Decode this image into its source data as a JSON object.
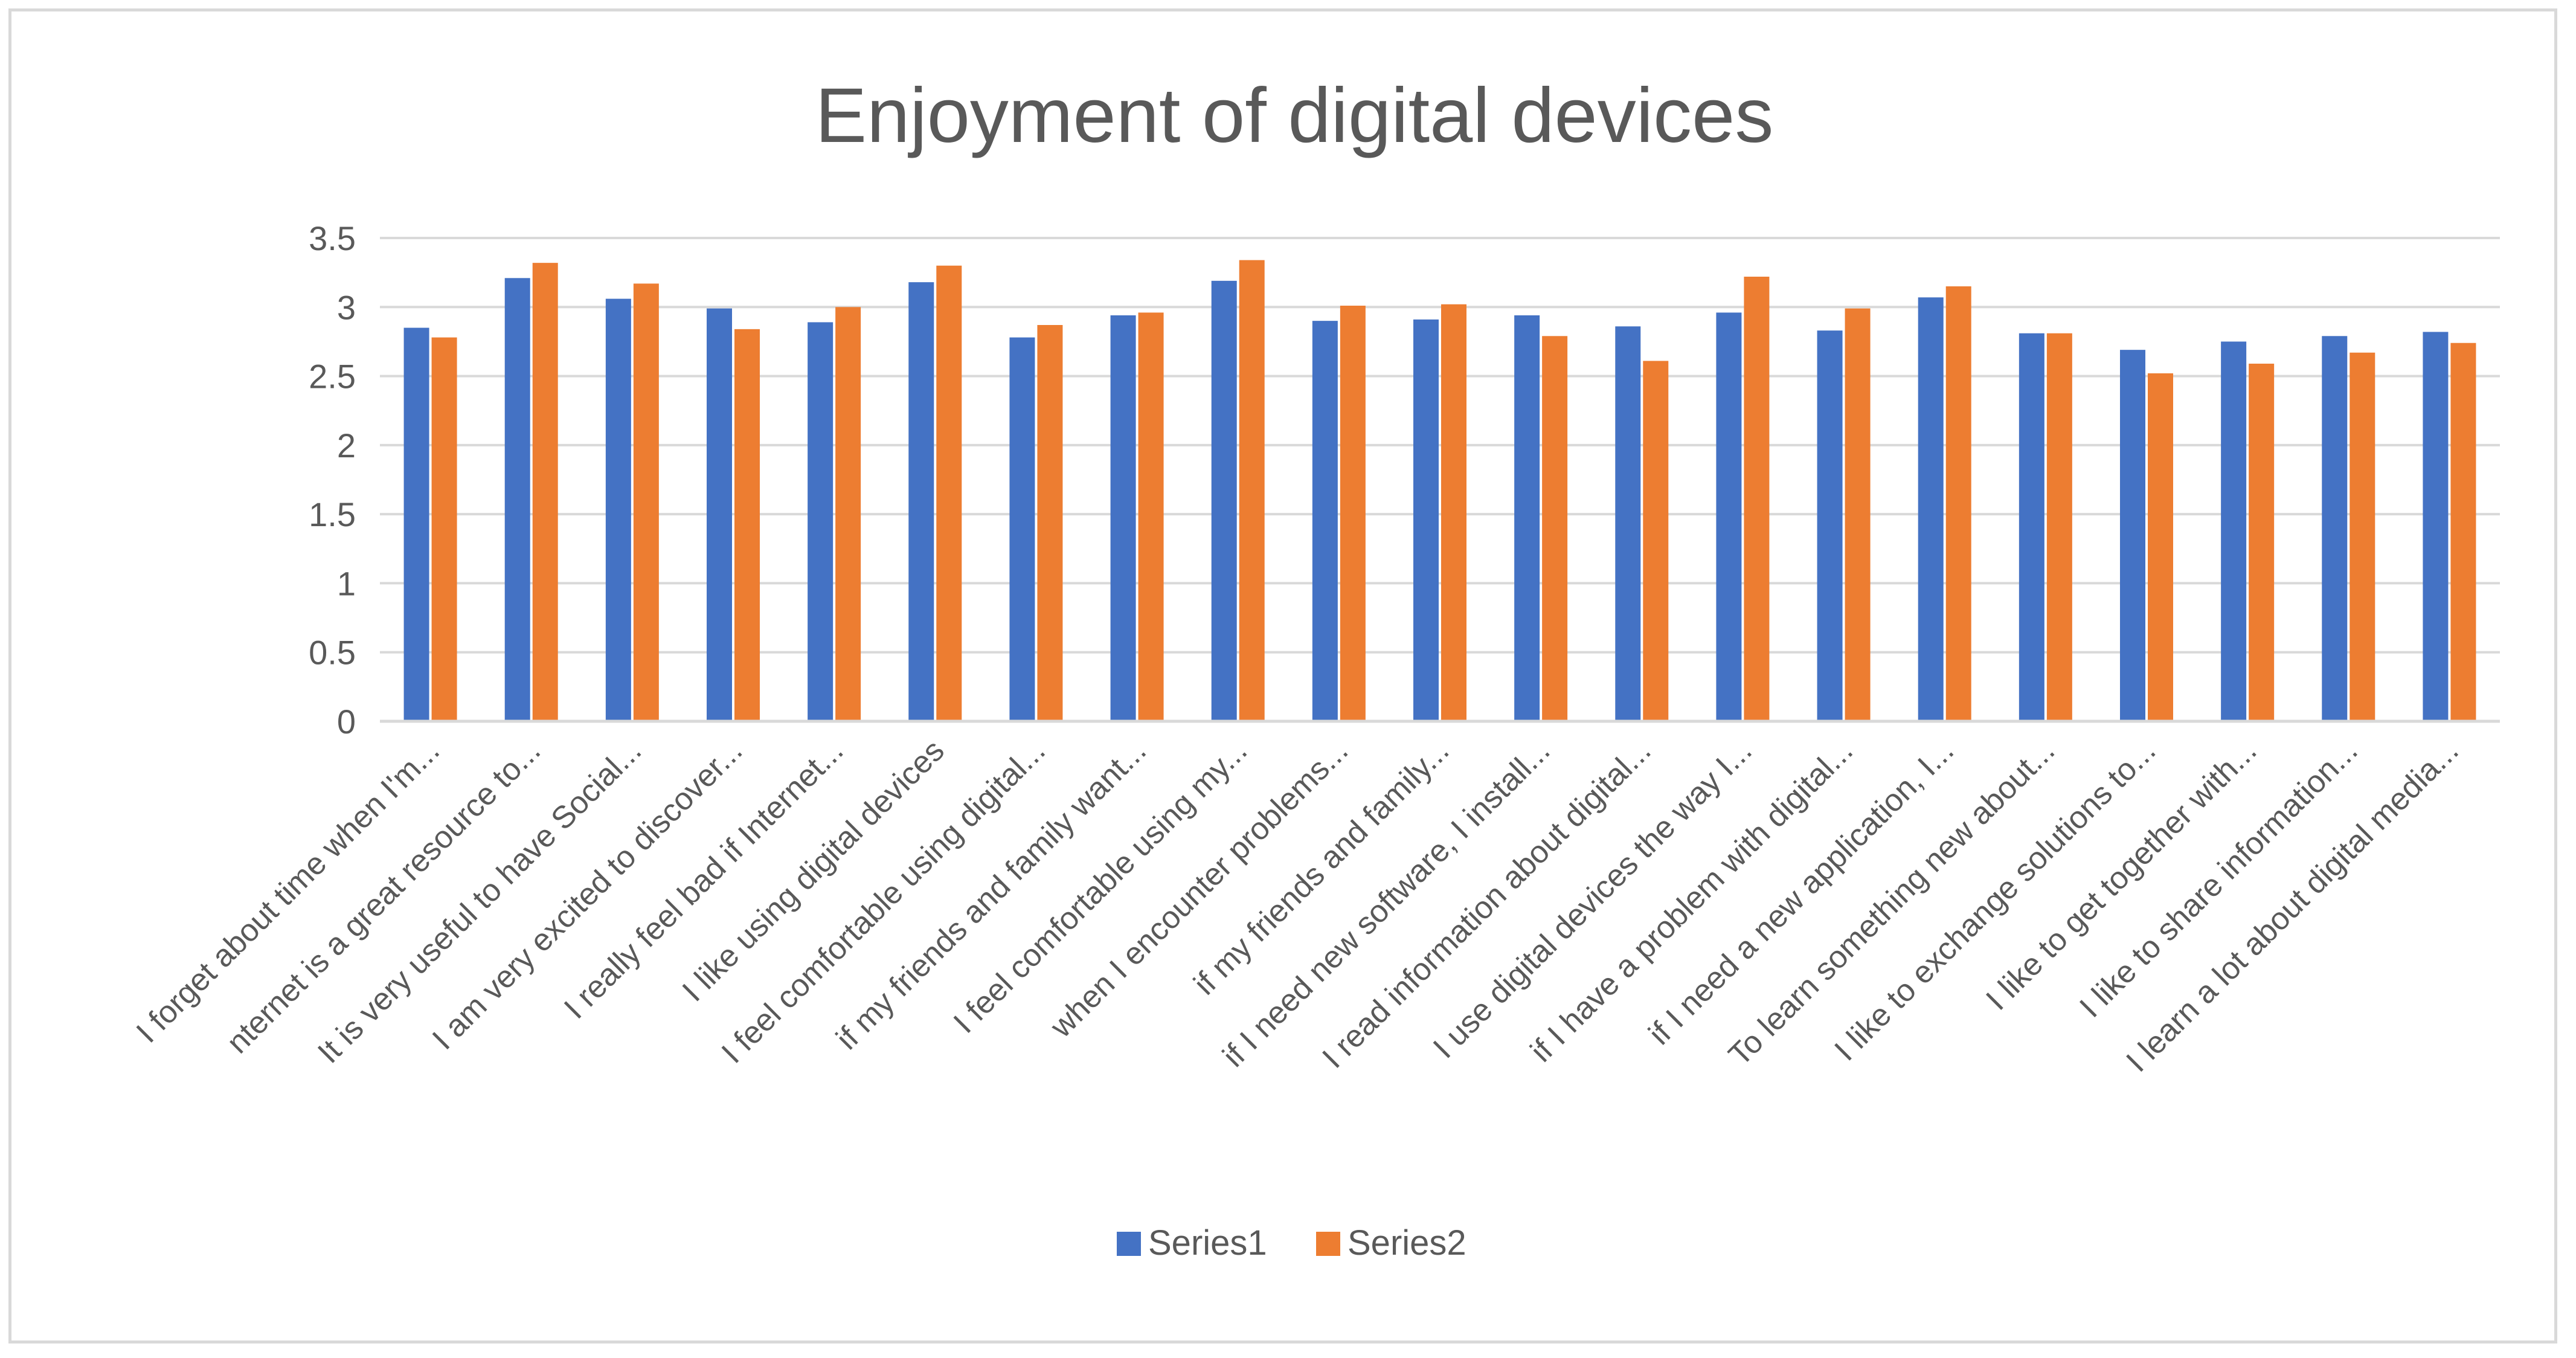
{
  "chart_data": {
    "type": "bar",
    "title": "Enjoyment of digital devices",
    "xlabel": "",
    "ylabel": "",
    "ylim": [
      0,
      3.5
    ],
    "yticks": [
      "0",
      "0.5",
      "1",
      "1.5",
      "2",
      "2.5",
      "3",
      "3.5"
    ],
    "grid": true,
    "legend_position": "bottom",
    "categories": [
      "I forget about time when I'm...",
      "nternet is a great resource to...",
      "It is very useful to have Social...",
      "I am very excited to discover...",
      "I really feel bad if Internet...",
      "I like using digital devices",
      "I feel comfortable using digital...",
      "if my friends and family want...",
      "I feel comfortable using my...",
      "when I encounter problems...",
      "if my friends and family...",
      "if I need new software, I install...",
      "I read information about digital...",
      "I use digital devices the way I...",
      "if I have a problem with digital...",
      "if I need a new application, I...",
      "To learn something new about...",
      "I like to exchange solutions to...",
      "I like to get together with...",
      "I like to share information...",
      "I learn a lot about digital media..."
    ],
    "series": [
      {
        "name": "Series1",
        "color": "#4472c4",
        "values": [
          2.85,
          3.21,
          3.06,
          2.99,
          2.89,
          3.18,
          2.78,
          2.94,
          3.19,
          2.9,
          2.91,
          2.94,
          2.86,
          2.96,
          2.83,
          3.07,
          2.81,
          2.69,
          2.75,
          2.79,
          2.82
        ]
      },
      {
        "name": "Series2",
        "color": "#ed7d31",
        "values": [
          2.78,
          3.32,
          3.17,
          2.84,
          3.0,
          3.3,
          2.87,
          2.96,
          3.34,
          3.01,
          3.02,
          2.79,
          2.61,
          3.22,
          2.99,
          3.15,
          2.81,
          2.52,
          2.59,
          2.67,
          2.74
        ]
      }
    ]
  }
}
